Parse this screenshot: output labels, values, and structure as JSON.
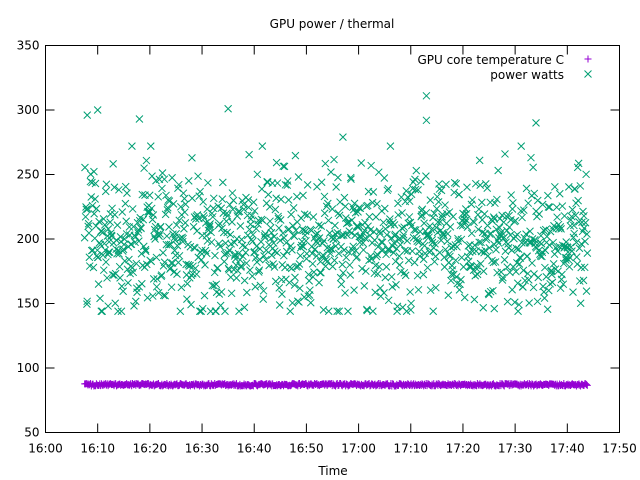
{
  "chart_data": {
    "type": "scatter",
    "title": "GPU power / thermal",
    "xlabel": "Time",
    "ylabel": "",
    "xlim": [
      "16:00",
      "17:50"
    ],
    "ylim": [
      50,
      350
    ],
    "x_ticks": [
      "16:00",
      "16:10",
      "16:20",
      "16:30",
      "16:40",
      "16:50",
      "17:00",
      "17:10",
      "17:20",
      "17:30",
      "17:40",
      "17:50"
    ],
    "y_ticks": [
      50,
      100,
      150,
      200,
      250,
      300,
      350
    ],
    "grid": false,
    "legend_position": "top-right",
    "x_range_observed": [
      "16:07:30",
      "17:43:50"
    ],
    "series": [
      {
        "name": "GPU core temperature C",
        "marker": "+",
        "color": "#9400d3",
        "start": "16:07:30",
        "end": "17:43:50",
        "typical_value": 87,
        "range": [
          86,
          88
        ],
        "sample_count": 600
      },
      {
        "name": "power watts",
        "marker": "x",
        "color": "#009e73",
        "start": "16:07:30",
        "end": "17:43:50",
        "typical_range": [
          150,
          260
        ],
        "center": 200,
        "sample_count": 1150,
        "notable_points": [
          {
            "x": "16:08",
            "y": 296
          },
          {
            "x": "16:10",
            "y": 300
          },
          {
            "x": "16:18",
            "y": 293
          },
          {
            "x": "16:35",
            "y": 301
          },
          {
            "x": "16:57",
            "y": 279
          },
          {
            "x": "17:13",
            "y": 311
          },
          {
            "x": "17:13",
            "y": 292
          },
          {
            "x": "17:34",
            "y": 290
          },
          {
            "x": "17:10",
            "y": 145
          },
          {
            "x": "17:26",
            "y": 146
          },
          {
            "x": "16:12",
            "y": 148
          }
        ]
      }
    ]
  }
}
